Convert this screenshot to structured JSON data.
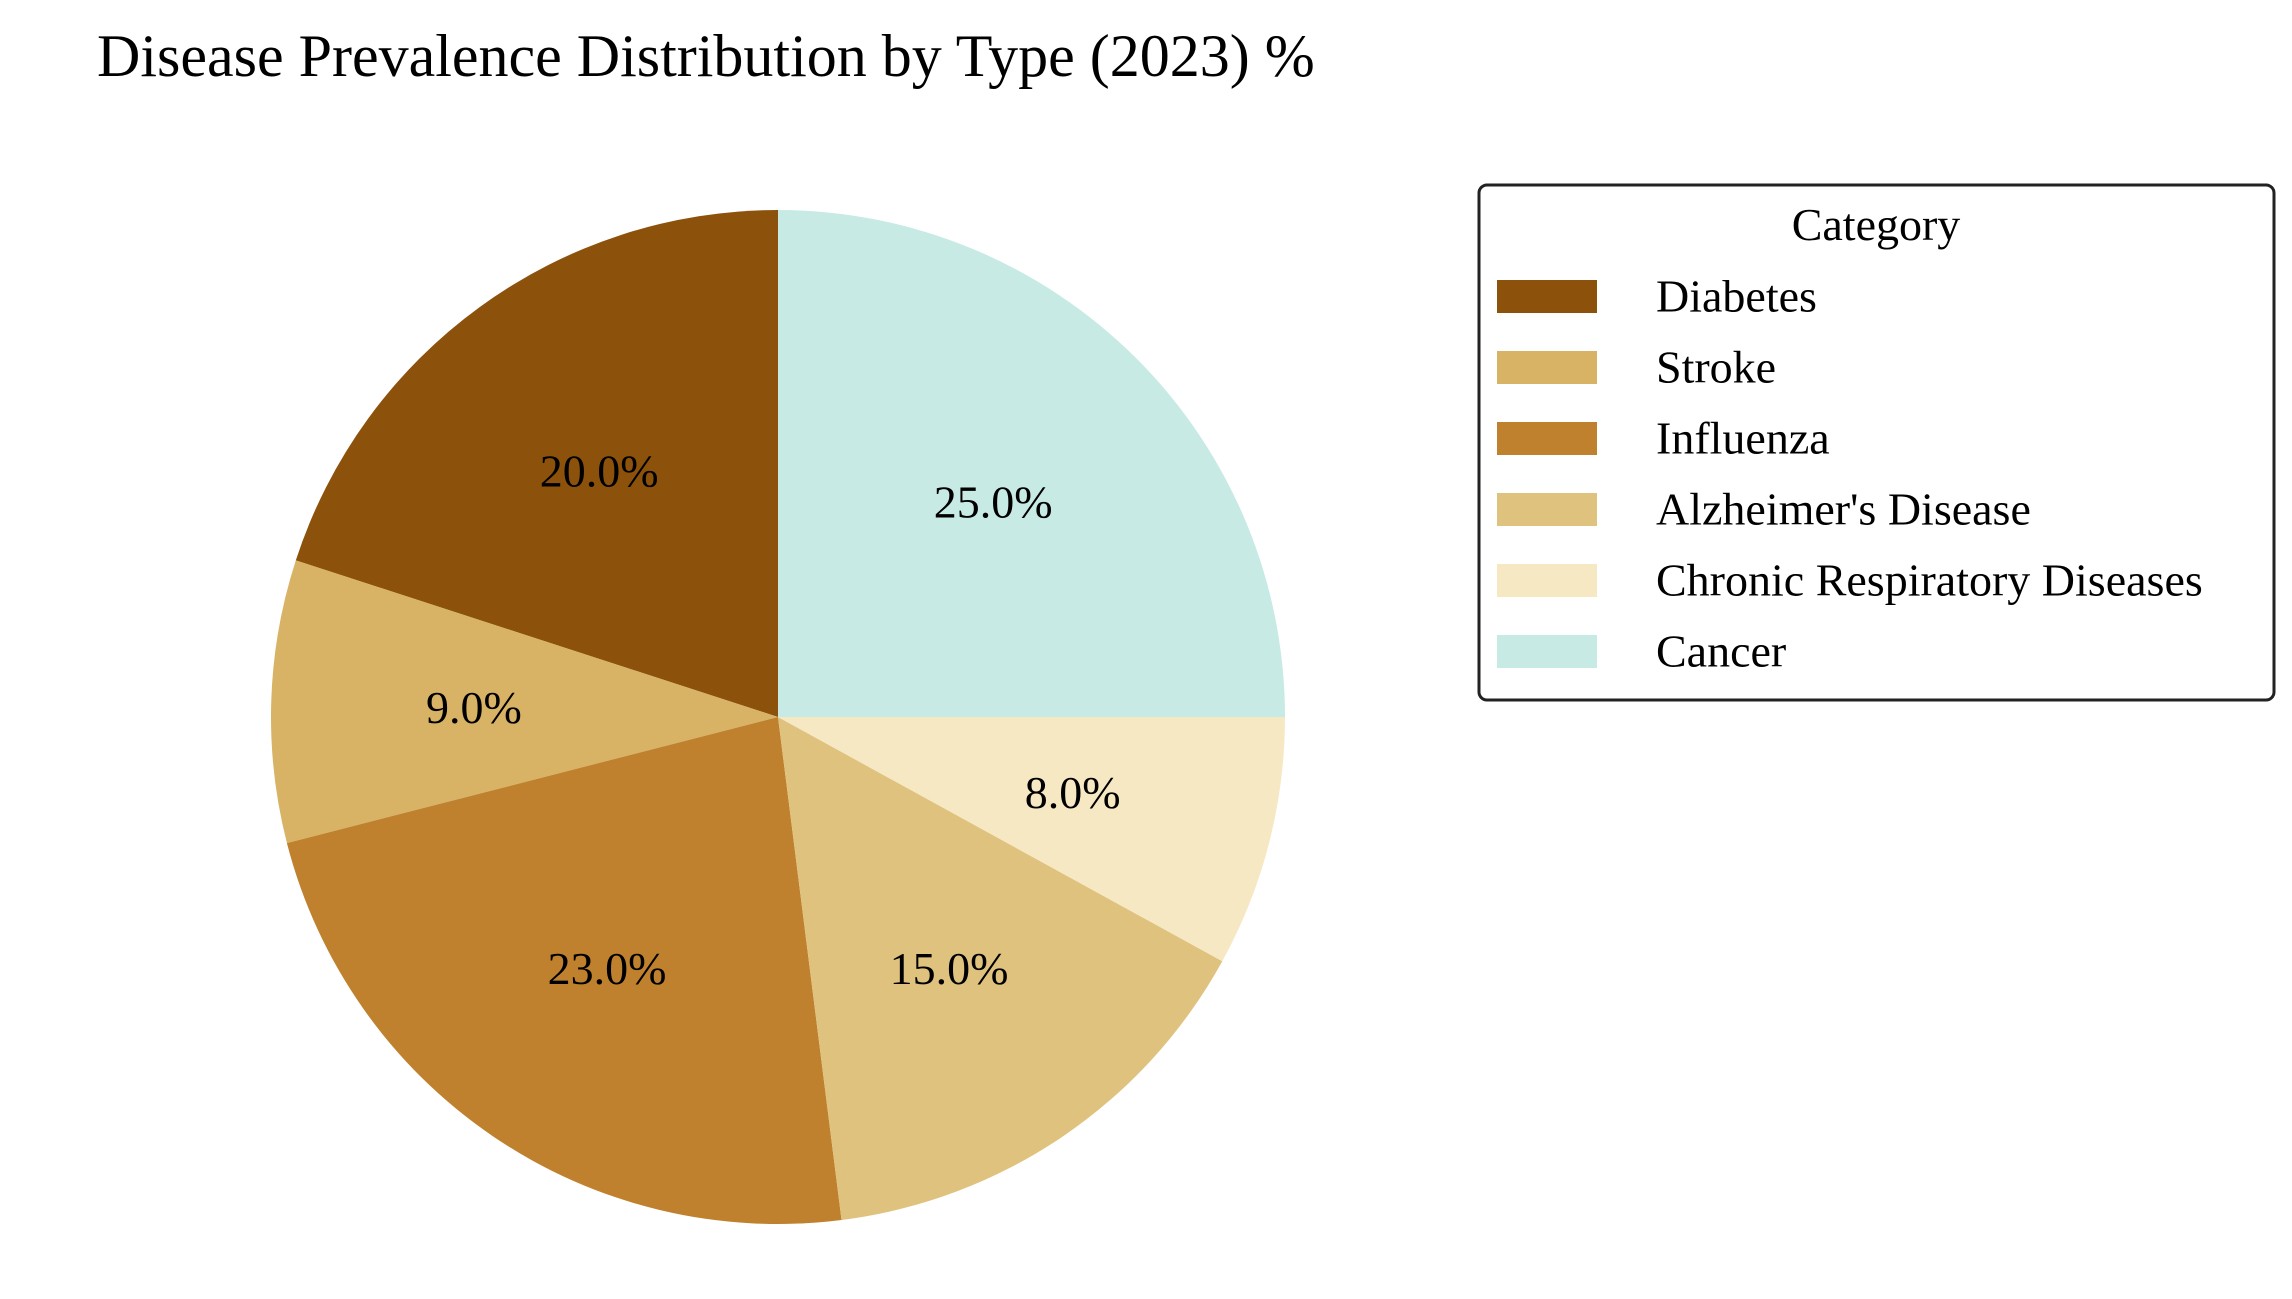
{
  "chart_data": {
    "type": "pie",
    "title": "Disease Prevalence Distribution by Type (2023) %",
    "legend_title": "Category",
    "legend_position": "right",
    "label_format": "percent with one decimal",
    "start_angle": "90 degrees (top), counter-clockwise",
    "slices": [
      {
        "label": "Diabetes",
        "value": 20.0,
        "display": "20.0%",
        "color": "#8c510a"
      },
      {
        "label": "Stroke",
        "value": 9.0,
        "display": "9.0%",
        "color": "#d8b365"
      },
      {
        "label": "Influenza",
        "value": 23.0,
        "display": "23.0%",
        "color": "#bf812d"
      },
      {
        "label": "Alzheimer's Disease",
        "value": 15.0,
        "display": "15.0%",
        "color": "#dfc27d"
      },
      {
        "label": "Chronic Respiratory Diseases",
        "value": 8.0,
        "display": "8.0%",
        "color": "#f6e8c3"
      },
      {
        "label": "Cancer",
        "value": 25.0,
        "display": "25.0%",
        "color": "#c7eae5"
      }
    ]
  }
}
